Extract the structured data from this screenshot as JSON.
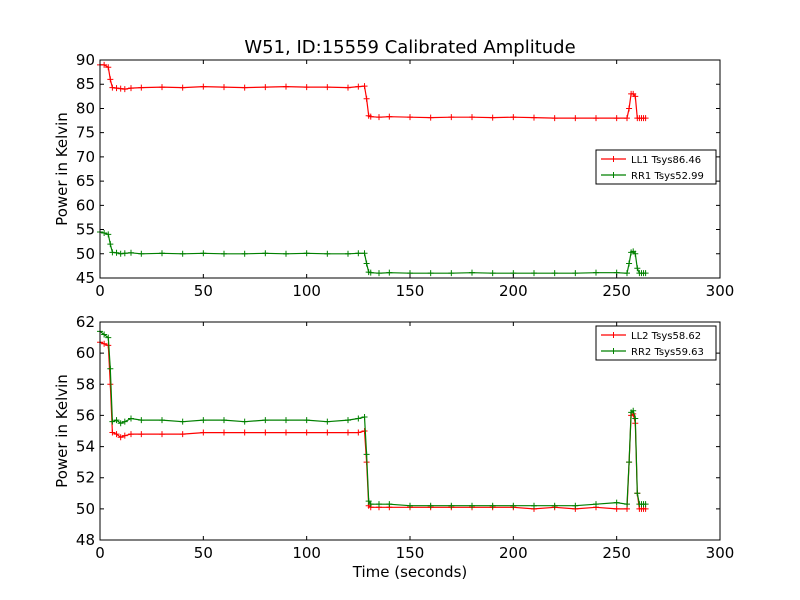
{
  "title": "W51, ID:15559 Calibrated Amplitude",
  "colors": {
    "red": "#ff0000",
    "green": "#008000"
  },
  "chart_data": [
    {
      "type": "line",
      "title": "W51, ID:15559 Calibrated Amplitude",
      "xlabel": "",
      "ylabel": "Power in Kelvin",
      "xlim": [
        0,
        300
      ],
      "ylim": [
        45,
        90
      ],
      "xticks": [
        "0",
        "50",
        "100",
        "150",
        "200",
        "250",
        "300"
      ],
      "yticks": [
        "45",
        "50",
        "55",
        "60",
        "65",
        "70",
        "75",
        "80",
        "85",
        "90"
      ],
      "legend_position": "center-right",
      "marker": "+",
      "series": [
        {
          "name": "LL1 Tsys86.46",
          "color": "#ff0000",
          "x": [
            0,
            2,
            4,
            5,
            6,
            8,
            10,
            12,
            15,
            20,
            30,
            40,
            50,
            60,
            70,
            80,
            90,
            100,
            110,
            120,
            125,
            128,
            129,
            130,
            131,
            135,
            140,
            150,
            160,
            170,
            180,
            190,
            200,
            210,
            220,
            230,
            240,
            250,
            255,
            256,
            257,
            258,
            259,
            260,
            261,
            262,
            263,
            264
          ],
          "y": [
            89,
            89,
            88.5,
            86,
            84.3,
            84.2,
            84.1,
            84,
            84.2,
            84.3,
            84.4,
            84.3,
            84.5,
            84.4,
            84.3,
            84.4,
            84.5,
            84.4,
            84.4,
            84.3,
            84.5,
            84.6,
            82,
            78.5,
            78.3,
            78.2,
            78.3,
            78.2,
            78.1,
            78.2,
            78.2,
            78.1,
            78.2,
            78.1,
            78,
            78,
            78,
            78,
            78,
            80,
            83,
            83,
            82.5,
            78,
            78,
            78,
            78,
            78
          ]
        },
        {
          "name": "RR1 Tsys52.99",
          "color": "#008000",
          "x": [
            0,
            2,
            4,
            5,
            6,
            8,
            10,
            12,
            15,
            20,
            30,
            40,
            50,
            60,
            70,
            80,
            90,
            100,
            110,
            120,
            125,
            128,
            129,
            130,
            131,
            135,
            140,
            150,
            160,
            170,
            180,
            190,
            200,
            210,
            220,
            230,
            240,
            250,
            255,
            256,
            257,
            258,
            259,
            260,
            261,
            262,
            263,
            264
          ],
          "y": [
            54.5,
            54.3,
            54,
            52,
            50.3,
            50.2,
            50,
            50.1,
            50.2,
            50,
            50.1,
            50,
            50.1,
            50,
            50,
            50.1,
            50,
            50.1,
            50,
            50,
            50.1,
            50.1,
            48,
            46.2,
            46.1,
            46,
            46.1,
            46,
            46,
            46,
            46.1,
            46,
            46,
            46,
            46,
            46,
            46.1,
            46.1,
            46,
            48,
            50.3,
            50.5,
            50,
            47,
            46,
            46,
            46,
            46
          ]
        }
      ]
    },
    {
      "type": "line",
      "title": "",
      "xlabel": "Time (seconds)",
      "ylabel": "Power in Kelvin",
      "xlim": [
        0,
        300
      ],
      "ylim": [
        48,
        62
      ],
      "xticks": [
        "0",
        "50",
        "100",
        "150",
        "200",
        "250",
        "300"
      ],
      "yticks": [
        "48",
        "50",
        "52",
        "54",
        "56",
        "58",
        "60",
        "62"
      ],
      "legend_position": "top-right",
      "marker": "+",
      "series": [
        {
          "name": "LL2 Tsys58.62",
          "color": "#ff0000",
          "x": [
            0,
            2,
            4,
            5,
            6,
            8,
            10,
            12,
            15,
            20,
            30,
            40,
            50,
            60,
            70,
            80,
            90,
            100,
            110,
            120,
            125,
            128,
            129,
            130,
            131,
            135,
            140,
            150,
            160,
            170,
            180,
            190,
            200,
            210,
            220,
            230,
            240,
            250,
            255,
            256,
            257,
            258,
            259,
            260,
            261,
            262,
            263,
            264
          ],
          "y": [
            60.7,
            60.6,
            60.5,
            58,
            54.9,
            54.8,
            54.6,
            54.7,
            54.8,
            54.8,
            54.8,
            54.8,
            54.9,
            54.9,
            54.9,
            54.9,
            54.9,
            54.9,
            54.9,
            54.9,
            54.9,
            55,
            53,
            50.2,
            50.1,
            50.1,
            50.1,
            50.1,
            50.1,
            50.1,
            50.1,
            50.1,
            50.1,
            50,
            50.1,
            50,
            50.1,
            50,
            50,
            53,
            56,
            56.1,
            55.5,
            51,
            50,
            50,
            50,
            50
          ]
        },
        {
          "name": "RR2 Tsys59.63",
          "color": "#008000",
          "x": [
            0,
            2,
            4,
            5,
            6,
            8,
            10,
            12,
            15,
            20,
            30,
            40,
            50,
            60,
            70,
            80,
            90,
            100,
            110,
            120,
            125,
            128,
            129,
            130,
            131,
            135,
            140,
            150,
            160,
            170,
            180,
            190,
            200,
            210,
            220,
            230,
            240,
            250,
            255,
            256,
            257,
            258,
            259,
            260,
            261,
            262,
            263,
            264
          ],
          "y": [
            61.4,
            61.2,
            61,
            59,
            55.6,
            55.7,
            55.5,
            55.6,
            55.8,
            55.7,
            55.7,
            55.6,
            55.7,
            55.7,
            55.6,
            55.7,
            55.7,
            55.7,
            55.6,
            55.7,
            55.8,
            55.9,
            53.5,
            50.5,
            50.3,
            50.3,
            50.3,
            50.2,
            50.2,
            50.2,
            50.2,
            50.2,
            50.2,
            50.2,
            50.2,
            50.2,
            50.3,
            50.4,
            50.3,
            53,
            56.2,
            56.3,
            55.8,
            51,
            50.3,
            50.3,
            50.3,
            50.3
          ]
        }
      ]
    }
  ]
}
